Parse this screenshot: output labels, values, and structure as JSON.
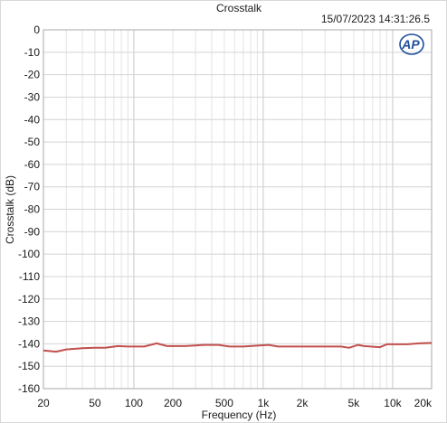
{
  "chart_data": {
    "type": "line",
    "title": "Crosstalk",
    "timestamp": "15/07/2023 14:31:26.5",
    "logo_text": "AP",
    "xlabel": "Frequency (Hz)",
    "ylabel": "Crosstalk (dB)",
    "x_scale": "log",
    "xlim": [
      20,
      20000
    ],
    "ylim": [
      -160,
      0
    ],
    "x_ticks": [
      {
        "value": 20,
        "label": "20"
      },
      {
        "value": 50,
        "label": "50"
      },
      {
        "value": 100,
        "label": "100"
      },
      {
        "value": 200,
        "label": "200"
      },
      {
        "value": 500,
        "label": "500"
      },
      {
        "value": 1000,
        "label": "1k"
      },
      {
        "value": 2000,
        "label": "2k"
      },
      {
        "value": 5000,
        "label": "5k"
      },
      {
        "value": 10000,
        "label": "10k"
      },
      {
        "value": 20000,
        "label": "20k"
      }
    ],
    "y_ticks": [
      0,
      -10,
      -20,
      -30,
      -40,
      -50,
      -60,
      -70,
      -80,
      -90,
      -100,
      -110,
      -120,
      -130,
      -140,
      -150,
      -160
    ],
    "grid": true,
    "series": [
      {
        "color": "#c0504d",
        "x": [
          20,
          25,
          30,
          40,
          50,
          60,
          75,
          90,
          120,
          150,
          180,
          250,
          350,
          450,
          550,
          700,
          900,
          1100,
          1300,
          1600,
          2000,
          2500,
          3000,
          4000,
          4600,
          5400,
          6000,
          8000,
          9000,
          10500,
          13000,
          16000,
          20000
        ],
        "y": [
          -143,
          -143.5,
          -142.5,
          -142,
          -141.8,
          -141.8,
          -141,
          -141.2,
          -141.2,
          -139.8,
          -141,
          -141,
          -140.5,
          -140.5,
          -141.2,
          -141.2,
          -140.8,
          -140.5,
          -141.2,
          -141.2,
          -141.2,
          -141.2,
          -141.2,
          -141.2,
          -141.8,
          -140.5,
          -141,
          -141.5,
          -140.2,
          -140.2,
          -140.2,
          -139.8,
          -139.6
        ]
      }
    ]
  }
}
